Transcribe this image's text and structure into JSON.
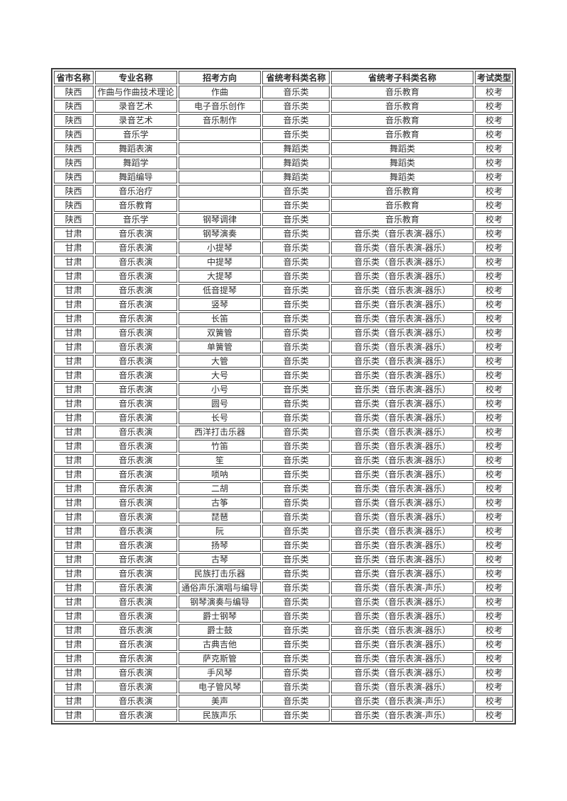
{
  "table": {
    "headers": [
      "省市名称",
      "专业名称",
      "招考方向",
      "省统考科类名称",
      "省统考子科类名称",
      "考试类型"
    ],
    "rows": [
      [
        "陕西",
        "作曲与作曲技术理论",
        "作曲",
        "音乐类",
        "音乐教育",
        "校考"
      ],
      [
        "陕西",
        "录音艺术",
        "电子音乐创作",
        "音乐类",
        "音乐教育",
        "校考"
      ],
      [
        "陕西",
        "录音艺术",
        "音乐制作",
        "音乐类",
        "音乐教育",
        "校考"
      ],
      [
        "陕西",
        "音乐学",
        "",
        "音乐类",
        "音乐教育",
        "校考"
      ],
      [
        "陕西",
        "舞蹈表演",
        "",
        "舞蹈类",
        "舞蹈类",
        "校考"
      ],
      [
        "陕西",
        "舞蹈学",
        "",
        "舞蹈类",
        "舞蹈类",
        "校考"
      ],
      [
        "陕西",
        "舞蹈编导",
        "",
        "舞蹈类",
        "舞蹈类",
        "校考"
      ],
      [
        "陕西",
        "音乐治疗",
        "",
        "音乐类",
        "音乐教育",
        "校考"
      ],
      [
        "陕西",
        "音乐教育",
        "",
        "音乐类",
        "音乐教育",
        "校考"
      ],
      [
        "陕西",
        "音乐学",
        "钢琴调律",
        "音乐类",
        "音乐教育",
        "校考"
      ],
      [
        "甘肃",
        "音乐表演",
        "钢琴演奏",
        "音乐类",
        "音乐类（音乐表演-器乐）",
        "校考"
      ],
      [
        "甘肃",
        "音乐表演",
        "小提琴",
        "音乐类",
        "音乐类（音乐表演-器乐）",
        "校考"
      ],
      [
        "甘肃",
        "音乐表演",
        "中提琴",
        "音乐类",
        "音乐类（音乐表演-器乐）",
        "校考"
      ],
      [
        "甘肃",
        "音乐表演",
        "大提琴",
        "音乐类",
        "音乐类（音乐表演-器乐）",
        "校考"
      ],
      [
        "甘肃",
        "音乐表演",
        "低音提琴",
        "音乐类",
        "音乐类（音乐表演-器乐）",
        "校考"
      ],
      [
        "甘肃",
        "音乐表演",
        "竖琴",
        "音乐类",
        "音乐类（音乐表演-器乐）",
        "校考"
      ],
      [
        "甘肃",
        "音乐表演",
        "长笛",
        "音乐类",
        "音乐类（音乐表演-器乐）",
        "校考"
      ],
      [
        "甘肃",
        "音乐表演",
        "双簧管",
        "音乐类",
        "音乐类（音乐表演-器乐）",
        "校考"
      ],
      [
        "甘肃",
        "音乐表演",
        "单簧管",
        "音乐类",
        "音乐类（音乐表演-器乐）",
        "校考"
      ],
      [
        "甘肃",
        "音乐表演",
        "大管",
        "音乐类",
        "音乐类（音乐表演-器乐）",
        "校考"
      ],
      [
        "甘肃",
        "音乐表演",
        "大号",
        "音乐类",
        "音乐类（音乐表演-器乐）",
        "校考"
      ],
      [
        "甘肃",
        "音乐表演",
        "小号",
        "音乐类",
        "音乐类（音乐表演-器乐）",
        "校考"
      ],
      [
        "甘肃",
        "音乐表演",
        "圆号",
        "音乐类",
        "音乐类（音乐表演-器乐）",
        "校考"
      ],
      [
        "甘肃",
        "音乐表演",
        "长号",
        "音乐类",
        "音乐类（音乐表演-器乐）",
        "校考"
      ],
      [
        "甘肃",
        "音乐表演",
        "西洋打击乐器",
        "音乐类",
        "音乐类（音乐表演-器乐）",
        "校考"
      ],
      [
        "甘肃",
        "音乐表演",
        "竹笛",
        "音乐类",
        "音乐类（音乐表演-器乐）",
        "校考"
      ],
      [
        "甘肃",
        "音乐表演",
        "笙",
        "音乐类",
        "音乐类（音乐表演-器乐）",
        "校考"
      ],
      [
        "甘肃",
        "音乐表演",
        "唢呐",
        "音乐类",
        "音乐类（音乐表演-器乐）",
        "校考"
      ],
      [
        "甘肃",
        "音乐表演",
        "二胡",
        "音乐类",
        "音乐类（音乐表演-器乐）",
        "校考"
      ],
      [
        "甘肃",
        "音乐表演",
        "古筝",
        "音乐类",
        "音乐类（音乐表演-器乐）",
        "校考"
      ],
      [
        "甘肃",
        "音乐表演",
        "琵琶",
        "音乐类",
        "音乐类（音乐表演-器乐）",
        "校考"
      ],
      [
        "甘肃",
        "音乐表演",
        "阮",
        "音乐类",
        "音乐类（音乐表演-器乐）",
        "校考"
      ],
      [
        "甘肃",
        "音乐表演",
        "扬琴",
        "音乐类",
        "音乐类（音乐表演-器乐）",
        "校考"
      ],
      [
        "甘肃",
        "音乐表演",
        "古琴",
        "音乐类",
        "音乐类（音乐表演-器乐）",
        "校考"
      ],
      [
        "甘肃",
        "音乐表演",
        "民族打击乐器",
        "音乐类",
        "音乐类（音乐表演-器乐）",
        "校考"
      ],
      [
        "甘肃",
        "音乐表演",
        "通俗声乐演唱与编导",
        "音乐类",
        "音乐类（音乐表演-声乐）",
        "校考"
      ],
      [
        "甘肃",
        "音乐表演",
        "钢琴演奏与编导",
        "音乐类",
        "音乐类（音乐表演-器乐）",
        "校考"
      ],
      [
        "甘肃",
        "音乐表演",
        "爵士钢琴",
        "音乐类",
        "音乐类（音乐表演-器乐）",
        "校考"
      ],
      [
        "甘肃",
        "音乐表演",
        "爵士鼓",
        "音乐类",
        "音乐类（音乐表演-器乐）",
        "校考"
      ],
      [
        "甘肃",
        "音乐表演",
        "古典吉他",
        "音乐类",
        "音乐类（音乐表演-器乐）",
        "校考"
      ],
      [
        "甘肃",
        "音乐表演",
        "萨克斯管",
        "音乐类",
        "音乐类（音乐表演-器乐）",
        "校考"
      ],
      [
        "甘肃",
        "音乐表演",
        "手风琴",
        "音乐类",
        "音乐类（音乐表演-器乐）",
        "校考"
      ],
      [
        "甘肃",
        "音乐表演",
        "电子管风琴",
        "音乐类",
        "音乐类（音乐表演-器乐）",
        "校考"
      ],
      [
        "甘肃",
        "音乐表演",
        "美声",
        "音乐类",
        "音乐类（音乐表演-声乐）",
        "校考"
      ],
      [
        "甘肃",
        "音乐表演",
        "民族声乐",
        "音乐类",
        "音乐类（音乐表演-声乐）",
        "校考"
      ]
    ]
  },
  "colors": {
    "page_background": "#ffffff",
    "border": "#4a4a4a",
    "text": "#2e2e2e"
  }
}
